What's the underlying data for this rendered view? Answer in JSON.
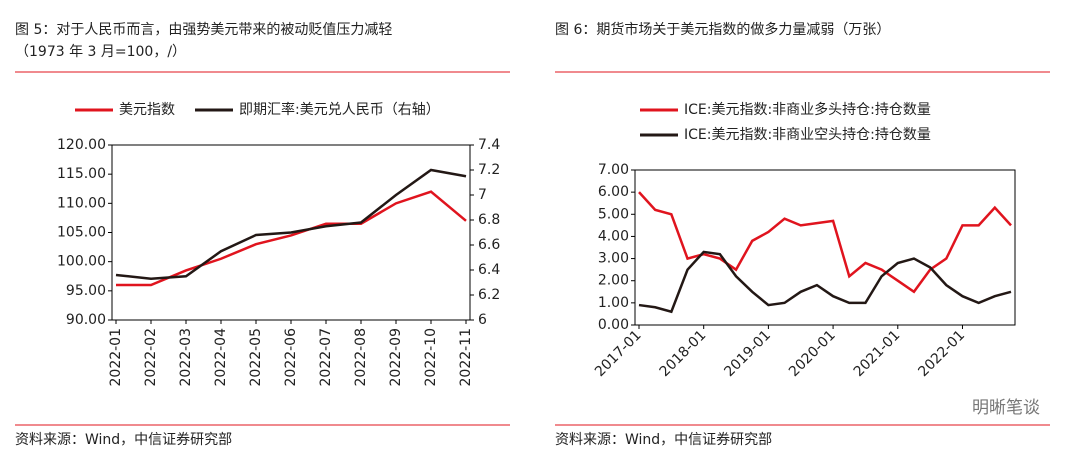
{
  "chart_data": [
    {
      "type": "line",
      "title": "图 5：对于人民币而言，由强势美元带来的被动贬值压力减轻",
      "subtitle": "（1973 年 3 月=100，/）",
      "source": "资料来源：Wind，中信证券研究部",
      "x": [
        "2022-01",
        "2022-02",
        "2022-03",
        "2022-04",
        "2022-05",
        "2022-06",
        "2022-07",
        "2022-08",
        "2022-09",
        "2022-10",
        "2022-11"
      ],
      "xticks": [
        "2022-01",
        "2022-02",
        "2022-03",
        "2022-04",
        "2022-05",
        "2022-06",
        "2022-07",
        "2022-08",
        "2022-09",
        "2022-10",
        "2022-11"
      ],
      "series": [
        {
          "name": "美元指数",
          "color": "#e0141e",
          "values": [
            96,
            96,
            98.5,
            100.5,
            103,
            104.5,
            106.5,
            106.5,
            110,
            112,
            107
          ]
        },
        {
          "name": "即期汇率:美元兑人民币（右轴）",
          "color": "#231815",
          "axis": "y2",
          "values": [
            6.36,
            6.33,
            6.35,
            6.55,
            6.68,
            6.7,
            6.75,
            6.78,
            7,
            7.2,
            7.15
          ]
        }
      ],
      "ylim": [
        90,
        120
      ],
      "yticks": [
        {
          "value": 90,
          "label": "90.00"
        },
        {
          "value": 95,
          "label": "95.00"
        },
        {
          "value": 100,
          "label": "100.00"
        },
        {
          "value": 105,
          "label": "105.00"
        },
        {
          "value": 110,
          "label": "110.00"
        },
        {
          "value": 115,
          "label": "115.00"
        },
        {
          "value": 120,
          "label": "120.00"
        }
      ],
      "y2lim": [
        6,
        7.4
      ],
      "y2ticks": [
        6,
        6.2,
        6.4,
        6.6,
        6.8,
        7,
        7.2,
        7.4
      ],
      "legend": "top"
    },
    {
      "type": "line",
      "title": "图 6：期货市场关于美元指数的做多力量减弱（万张）",
      "source": "资料来源：Wind，中信证券研究部",
      "x": [
        "2017-01",
        "2017-04",
        "2017-07",
        "2017-10",
        "2018-01",
        "2018-04",
        "2018-07",
        "2018-10",
        "2019-01",
        "2019-04",
        "2019-07",
        "2019-10",
        "2020-01",
        "2020-04",
        "2020-07",
        "2020-10",
        "2021-01",
        "2021-04",
        "2021-07",
        "2021-10",
        "2022-01",
        "2022-04",
        "2022-07",
        "2022-10"
      ],
      "xticks": [
        "2017-01",
        "2018-01",
        "2019-01",
        "2020-01",
        "2021-01",
        "2022-01"
      ],
      "series": [
        {
          "name": "ICE:美元指数:非商业多头持仓:持仓数量",
          "color": "#e0141e",
          "values": [
            6,
            5.2,
            5,
            3,
            3.2,
            3,
            2.5,
            3.8,
            4.2,
            4.8,
            4.5,
            4.6,
            4.7,
            2.2,
            2.8,
            2.5,
            2,
            1.5,
            2.5,
            3,
            4.5,
            4.5,
            5.3,
            4.5
          ]
        },
        {
          "name": "ICE:美元指数:非商业空头持仓:持仓数量",
          "color": "#231815",
          "values": [
            0.9,
            0.8,
            0.6,
            2.5,
            3.3,
            3.2,
            2.2,
            1.5,
            0.9,
            1,
            1.5,
            1.8,
            1.3,
            1,
            1,
            2.2,
            2.8,
            3,
            2.6,
            1.8,
            1.3,
            1,
            1.3,
            1.5
          ]
        }
      ],
      "ylim": [
        0,
        7
      ],
      "yticks": [
        {
          "value": 0,
          "label": "0.00"
        },
        {
          "value": 1,
          "label": "1.00"
        },
        {
          "value": 2,
          "label": "2.00"
        },
        {
          "value": 3,
          "label": "3.00"
        },
        {
          "value": 4,
          "label": "4.00"
        },
        {
          "value": 5,
          "label": "5.00"
        },
        {
          "value": 6,
          "label": "6.00"
        },
        {
          "value": 7,
          "label": "7.00"
        }
      ],
      "legend": "top"
    }
  ],
  "watermark": "明晰笔谈"
}
